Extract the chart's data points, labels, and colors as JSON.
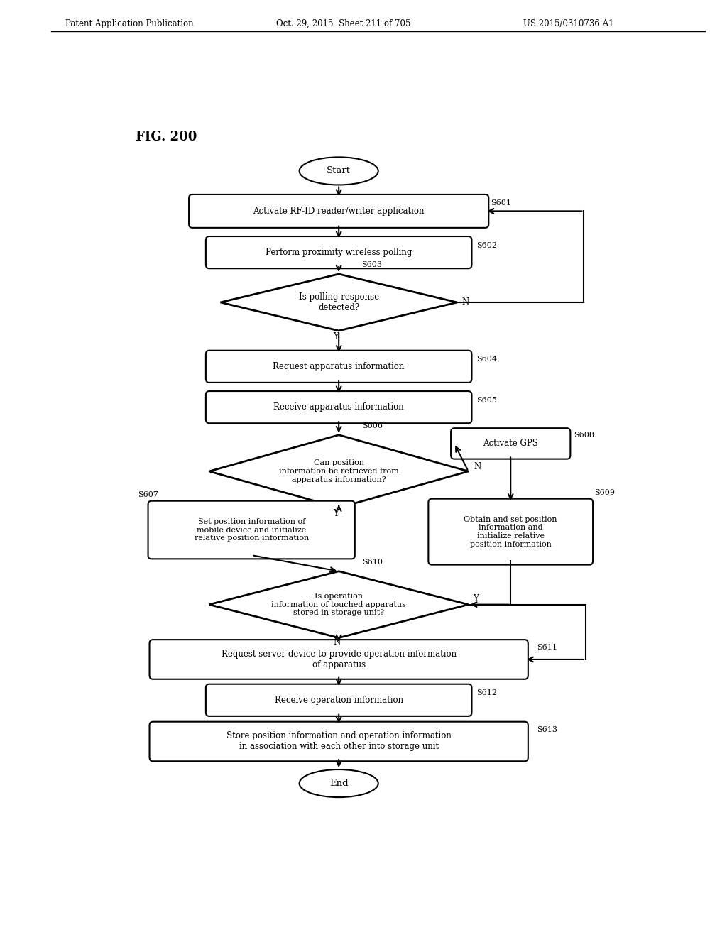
{
  "header_left": "Patent Application Publication",
  "header_mid": "Oct. 29, 2015  Sheet 211 of 705",
  "header_right": "US 2015/0310736 A1",
  "fig_label": "FIG. 200",
  "bg_color": "#ffffff"
}
